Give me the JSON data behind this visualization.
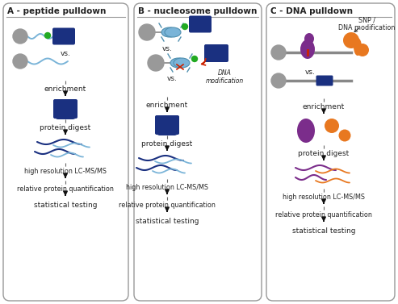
{
  "title_A": "A - peptide pulldown",
  "title_B": "B - nucleosome pulldown",
  "title_C": "C - DNA pulldown",
  "bg_color": "#ffffff",
  "dark_blue": "#1a3080",
  "light_blue": "#7ab4d8",
  "gray": "#999999",
  "green": "#22aa22",
  "red_arrow": "#cc2200",
  "purple": "#7b2d8b",
  "orange": "#e87820",
  "text_color": "#222222",
  "vs_label": "vs.",
  "dna_mod_label": "DNA\nmodification",
  "snp_label": "SNP /\nDNA modification"
}
